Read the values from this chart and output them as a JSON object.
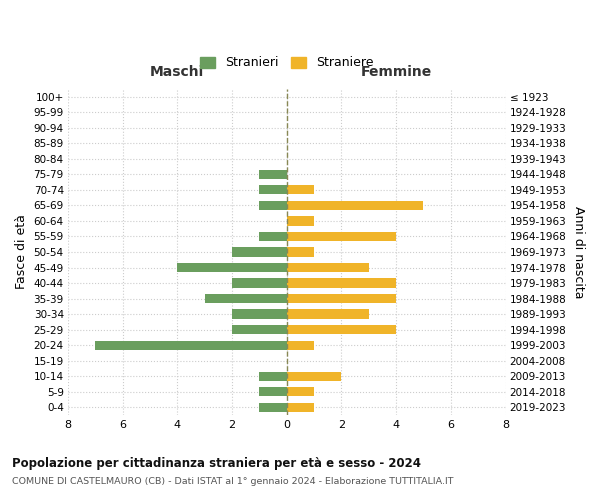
{
  "age_groups": [
    "0-4",
    "5-9",
    "10-14",
    "15-19",
    "20-24",
    "25-29",
    "30-34",
    "35-39",
    "40-44",
    "45-49",
    "50-54",
    "55-59",
    "60-64",
    "65-69",
    "70-74",
    "75-79",
    "80-84",
    "85-89",
    "90-94",
    "95-99",
    "100+"
  ],
  "birth_years": [
    "2019-2023",
    "2014-2018",
    "2009-2013",
    "2004-2008",
    "1999-2003",
    "1994-1998",
    "1989-1993",
    "1984-1988",
    "1979-1983",
    "1974-1978",
    "1969-1973",
    "1964-1968",
    "1959-1963",
    "1954-1958",
    "1949-1953",
    "1944-1948",
    "1939-1943",
    "1934-1938",
    "1929-1933",
    "1924-1928",
    "≤ 1923"
  ],
  "males": [
    1,
    1,
    1,
    0,
    7,
    2,
    2,
    3,
    2,
    4,
    2,
    1,
    0,
    1,
    1,
    1,
    0,
    0,
    0,
    0,
    0
  ],
  "females": [
    1,
    1,
    2,
    0,
    1,
    4,
    3,
    4,
    4,
    3,
    1,
    4,
    1,
    5,
    1,
    0,
    0,
    0,
    0,
    0,
    0
  ],
  "male_color": "#6a9e5e",
  "female_color": "#f0b429",
  "background_color": "#ffffff",
  "grid_color": "#cccccc",
  "title_main": "Popolazione per cittadinanza straniera per età e sesso - 2024",
  "title_sub": "COMUNE DI CASTELMAURO (CB) - Dati ISTAT al 1° gennaio 2024 - Elaborazione TUTTITALIA.IT",
  "xlabel_left": "Maschi",
  "xlabel_right": "Femmine",
  "ylabel_left": "Fasce di età",
  "ylabel_right": "Anni di nascita",
  "legend_male": "Stranieri",
  "legend_female": "Straniere",
  "xlim": 8
}
